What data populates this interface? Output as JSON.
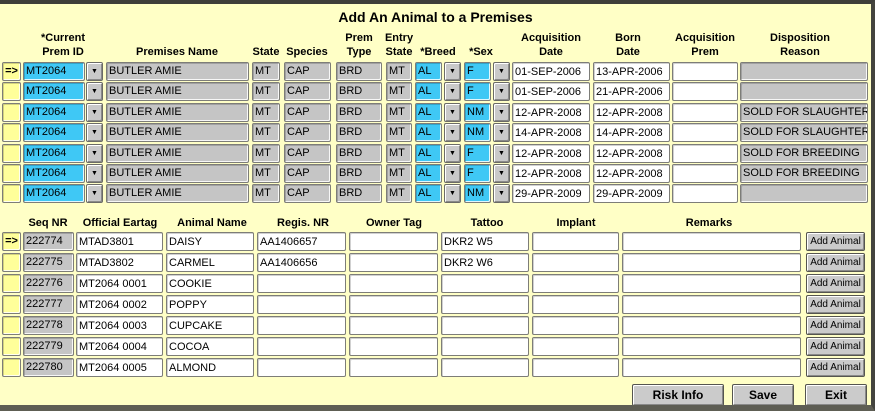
{
  "window": {
    "title": "Add An Animal to a Premises"
  },
  "selector_arrow": "=>",
  "colors": {
    "background": "#FFFFC6",
    "selector_yellow": "#FFFF9A",
    "combo_cyan": "#3FC8F5",
    "readonly_gray": "#C5C5C5",
    "field_white": "#FFFFFF",
    "button_gray": "#CBCBCB"
  },
  "premises_table": {
    "headers": {
      "current_prem_id": [
        "*Current",
        "Prem ID"
      ],
      "premises_name": [
        "Premises Name"
      ],
      "state": [
        "State"
      ],
      "species": [
        "Species"
      ],
      "prem_type": [
        "Prem",
        "Type"
      ],
      "entry_state": [
        "Entry",
        "State"
      ],
      "breed": [
        "*Breed"
      ],
      "sex": [
        "*Sex"
      ],
      "acquisition_date": [
        "Acquisition",
        "Date"
      ],
      "born_date": [
        "Born",
        "Date"
      ],
      "acquisition_prem": [
        "Acquisition",
        "Prem"
      ],
      "disposition_reason": [
        "Disposition",
        "Reason"
      ]
    },
    "rows": [
      {
        "prem_id": "MT2064",
        "premises_name": "BUTLER AMIE",
        "state": "MT",
        "species": "CAP",
        "prem_type": "BRD",
        "entry_state": "MT",
        "breed": "AL",
        "sex": "F",
        "acquisition_date": "01-SEP-2006",
        "born_date": "13-APR-2006",
        "acquisition_prem": "",
        "disposition_reason": ""
      },
      {
        "prem_id": "MT2064",
        "premises_name": "BUTLER AMIE",
        "state": "MT",
        "species": "CAP",
        "prem_type": "BRD",
        "entry_state": "MT",
        "breed": "AL",
        "sex": "F",
        "acquisition_date": "01-SEP-2006",
        "born_date": "21-APR-2006",
        "acquisition_prem": "",
        "disposition_reason": ""
      },
      {
        "prem_id": "MT2064",
        "premises_name": "BUTLER AMIE",
        "state": "MT",
        "species": "CAP",
        "prem_type": "BRD",
        "entry_state": "MT",
        "breed": "AL",
        "sex": "NM",
        "acquisition_date": "12-APR-2008",
        "born_date": "12-APR-2008",
        "acquisition_prem": "",
        "disposition_reason": "SOLD FOR SLAUGHTER"
      },
      {
        "prem_id": "MT2064",
        "premises_name": "BUTLER AMIE",
        "state": "MT",
        "species": "CAP",
        "prem_type": "BRD",
        "entry_state": "MT",
        "breed": "AL",
        "sex": "NM",
        "acquisition_date": "14-APR-2008",
        "born_date": "14-APR-2008",
        "acquisition_prem": "",
        "disposition_reason": "SOLD FOR SLAUGHTER"
      },
      {
        "prem_id": "MT2064",
        "premises_name": "BUTLER AMIE",
        "state": "MT",
        "species": "CAP",
        "prem_type": "BRD",
        "entry_state": "MT",
        "breed": "AL",
        "sex": "F",
        "acquisition_date": "12-APR-2008",
        "born_date": "12-APR-2008",
        "acquisition_prem": "",
        "disposition_reason": "SOLD FOR BREEDING"
      },
      {
        "prem_id": "MT2064",
        "premises_name": "BUTLER AMIE",
        "state": "MT",
        "species": "CAP",
        "prem_type": "BRD",
        "entry_state": "MT",
        "breed": "AL",
        "sex": "F",
        "acquisition_date": "12-APR-2008",
        "born_date": "12-APR-2008",
        "acquisition_prem": "",
        "disposition_reason": "SOLD FOR BREEDING"
      },
      {
        "prem_id": "MT2064",
        "premises_name": "BUTLER AMIE",
        "state": "MT",
        "species": "CAP",
        "prem_type": "BRD",
        "entry_state": "MT",
        "breed": "AL",
        "sex": "NM",
        "acquisition_date": "29-APR-2009",
        "born_date": "29-APR-2009",
        "acquisition_prem": "",
        "disposition_reason": ""
      }
    ]
  },
  "animals_table": {
    "headers": {
      "seq_nr": "Seq NR",
      "official_eartag": "Official Eartag",
      "animal_name": "Animal Name",
      "regis_nr": "Regis. NR",
      "owner_tag": "Owner Tag",
      "tattoo": "Tattoo",
      "implant": "Implant",
      "remarks": "Remarks"
    },
    "add_button_label": "Add Animal",
    "rows": [
      {
        "seq_nr": "222774",
        "official_eartag": "MTAD3801",
        "animal_name": "DAISY",
        "regis_nr": "AA1406657",
        "owner_tag": "",
        "tattoo": "DKR2 W5",
        "implant": "",
        "remarks": ""
      },
      {
        "seq_nr": "222775",
        "official_eartag": "MTAD3802",
        "animal_name": "CARMEL",
        "regis_nr": "AA1406656",
        "owner_tag": "",
        "tattoo": "DKR2 W6",
        "implant": "",
        "remarks": ""
      },
      {
        "seq_nr": "222776",
        "official_eartag": "MT2064 0001",
        "animal_name": "COOKIE",
        "regis_nr": "",
        "owner_tag": "",
        "tattoo": "",
        "implant": "",
        "remarks": ""
      },
      {
        "seq_nr": "222777",
        "official_eartag": "MT2064 0002",
        "animal_name": "POPPY",
        "regis_nr": "",
        "owner_tag": "",
        "tattoo": "",
        "implant": "",
        "remarks": ""
      },
      {
        "seq_nr": "222778",
        "official_eartag": "MT2064 0003",
        "animal_name": "CUPCAKE",
        "regis_nr": "",
        "owner_tag": "",
        "tattoo": "",
        "implant": "",
        "remarks": ""
      },
      {
        "seq_nr": "222779",
        "official_eartag": "MT2064 0004",
        "animal_name": "COCOA",
        "regis_nr": "",
        "owner_tag": "",
        "tattoo": "",
        "implant": "",
        "remarks": ""
      },
      {
        "seq_nr": "222780",
        "official_eartag": "MT2064 0005",
        "animal_name": "ALMOND",
        "regis_nr": "",
        "owner_tag": "",
        "tattoo": "",
        "implant": "",
        "remarks": ""
      }
    ]
  },
  "footer": {
    "buttons": [
      {
        "id": "risk-info",
        "label": "Risk Info"
      },
      {
        "id": "save",
        "label": "Save"
      },
      {
        "id": "exit",
        "label": "Exit"
      }
    ]
  }
}
